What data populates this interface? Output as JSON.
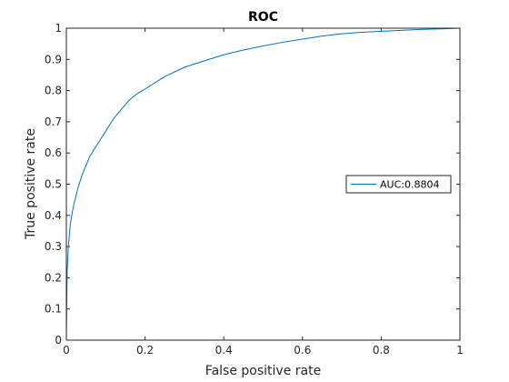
{
  "chart_data": {
    "type": "line",
    "title": "ROC",
    "xlabel": "False positive rate",
    "ylabel": "True positive rate",
    "xlim": [
      0,
      1
    ],
    "ylim": [
      0,
      1
    ],
    "xticks": [
      "0",
      "0.2",
      "0.4",
      "0.6",
      "0.8",
      "1"
    ],
    "yticks": [
      "0",
      "0.1",
      "0.2",
      "0.3",
      "0.4",
      "0.5",
      "0.6",
      "0.7",
      "0.8",
      "0.9",
      "1"
    ],
    "grid": false,
    "legend_position": "right",
    "colors": {
      "series": "#0072bd",
      "axes": "#262626"
    },
    "series": [
      {
        "name": "AUC:0.8804",
        "x": [
          0,
          0.002,
          0.005,
          0.01,
          0.015,
          0.02,
          0.03,
          0.04,
          0.05,
          0.06,
          0.07,
          0.08,
          0.1,
          0.12,
          0.14,
          0.16,
          0.18,
          0.2,
          0.25,
          0.3,
          0.35,
          0.4,
          0.45,
          0.5,
          0.55,
          0.6,
          0.65,
          0.7,
          0.75,
          0.8,
          0.85,
          0.9,
          0.95,
          1.0
        ],
        "y": [
          0,
          0.22,
          0.3,
          0.37,
          0.41,
          0.44,
          0.49,
          0.53,
          0.56,
          0.59,
          0.61,
          0.63,
          0.67,
          0.71,
          0.74,
          0.77,
          0.79,
          0.805,
          0.845,
          0.875,
          0.895,
          0.915,
          0.93,
          0.943,
          0.955,
          0.965,
          0.975,
          0.982,
          0.987,
          0.99,
          0.993,
          0.996,
          0.998,
          1.0
        ]
      }
    ]
  }
}
